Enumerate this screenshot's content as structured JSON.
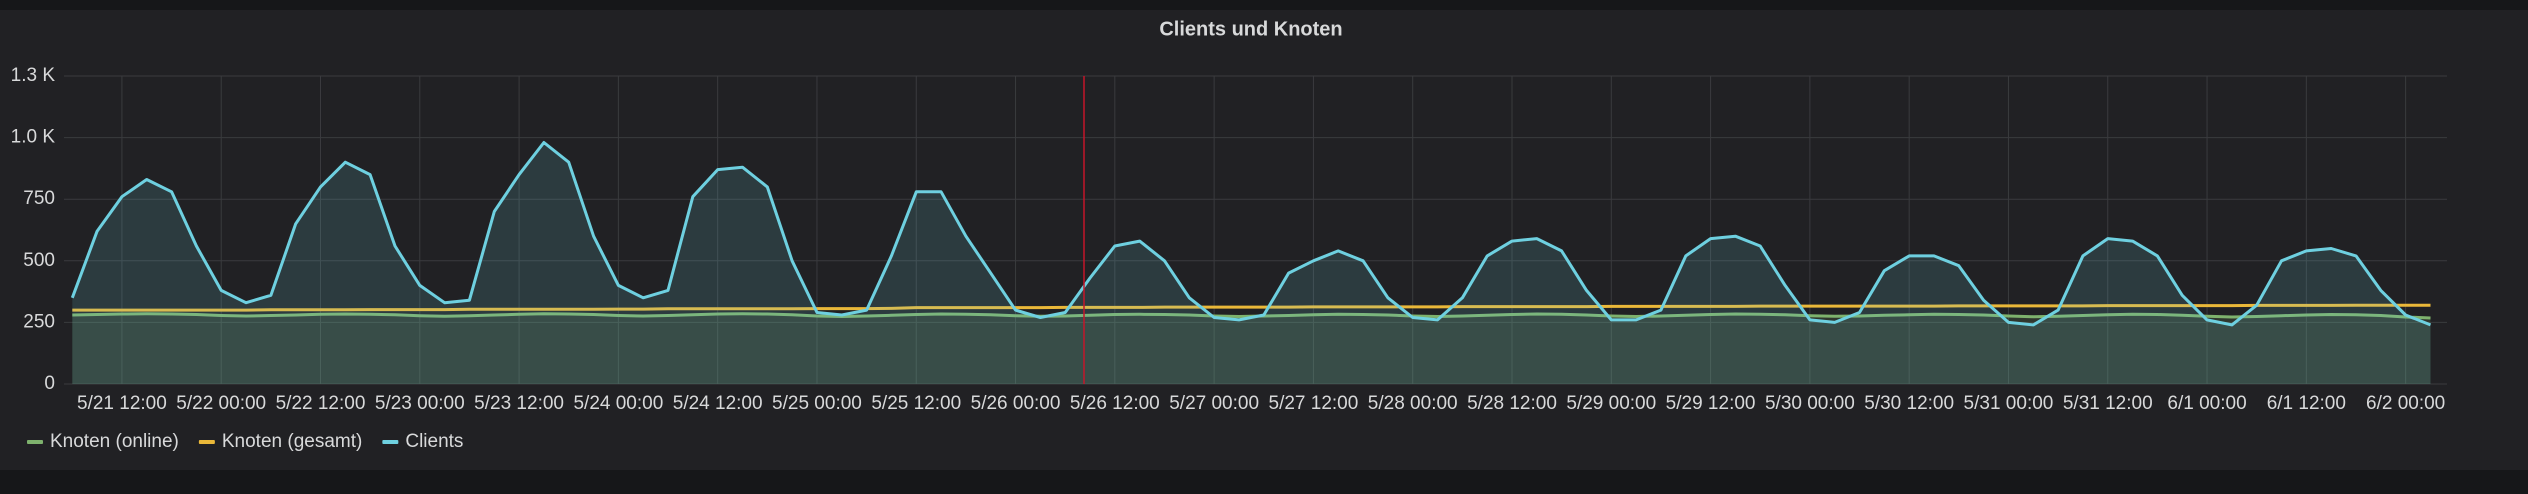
{
  "chart_data": {
    "type": "line",
    "title": "Clients und Knoten",
    "x": [
      "5/21 06:00",
      "5/21 09:00",
      "5/21 12:00",
      "5/21 15:00",
      "5/21 18:00",
      "5/21 21:00",
      "5/22 00:00",
      "5/22 03:00",
      "5/22 06:00",
      "5/22 09:00",
      "5/22 12:00",
      "5/22 15:00",
      "5/22 18:00",
      "5/22 21:00",
      "5/23 00:00",
      "5/23 03:00",
      "5/23 06:00",
      "5/23 09:00",
      "5/23 12:00",
      "5/23 15:00",
      "5/23 18:00",
      "5/23 21:00",
      "5/24 00:00",
      "5/24 03:00",
      "5/24 06:00",
      "5/24 09:00",
      "5/24 12:00",
      "5/24 15:00",
      "5/24 18:00",
      "5/24 21:00",
      "5/25 00:00",
      "5/25 03:00",
      "5/25 06:00",
      "5/25 09:00",
      "5/25 12:00",
      "5/25 15:00",
      "5/25 18:00",
      "5/25 21:00",
      "5/26 00:00",
      "5/26 03:00",
      "5/26 06:00",
      "5/26 09:00",
      "5/26 12:00",
      "5/26 15:00",
      "5/26 18:00",
      "5/26 21:00",
      "5/27 00:00",
      "5/27 03:00",
      "5/27 06:00",
      "5/27 09:00",
      "5/27 12:00",
      "5/27 15:00",
      "5/27 18:00",
      "5/27 21:00",
      "5/28 00:00",
      "5/28 03:00",
      "5/28 06:00",
      "5/28 09:00",
      "5/28 12:00",
      "5/28 15:00",
      "5/28 18:00",
      "5/28 21:00",
      "5/29 00:00",
      "5/29 03:00",
      "5/29 06:00",
      "5/29 09:00",
      "5/29 12:00",
      "5/29 15:00",
      "5/29 18:00",
      "5/29 21:00",
      "5/30 00:00",
      "5/30 03:00",
      "5/30 06:00",
      "5/30 09:00",
      "5/30 12:00",
      "5/30 15:00",
      "5/30 18:00",
      "5/30 21:00",
      "5/31 00:00",
      "5/31 03:00",
      "5/31 06:00",
      "5/31 09:00",
      "5/31 12:00",
      "5/31 15:00",
      "5/31 18:00",
      "5/31 21:00",
      "6/1 00:00",
      "6/1 03:00",
      "6/1 06:00",
      "6/1 09:00",
      "6/1 12:00",
      "6/1 15:00",
      "6/1 18:00",
      "6/1 21:00",
      "6/2 00:00",
      "6/2 03:00"
    ],
    "xlim": [
      "5/21 05:00",
      "6/2 05:00"
    ],
    "xticks": [
      "5/21 12:00",
      "5/22 00:00",
      "5/22 12:00",
      "5/23 00:00",
      "5/23 12:00",
      "5/24 00:00",
      "5/24 12:00",
      "5/25 00:00",
      "5/25 12:00",
      "5/26 00:00",
      "5/26 12:00",
      "5/27 00:00",
      "5/27 12:00",
      "5/28 00:00",
      "5/28 12:00",
      "5/29 00:00",
      "5/29 12:00",
      "5/30 00:00",
      "5/30 12:00",
      "5/31 00:00",
      "5/31 12:00",
      "6/1 00:00",
      "6/1 12:00",
      "6/2 00:00"
    ],
    "ylim": [
      0,
      1250
    ],
    "yticks": [
      0,
      250,
      500,
      750,
      {
        "value": 1000,
        "label": "1.0 K"
      },
      {
        "value": 1250,
        "label": "1.3 K"
      }
    ],
    "grid": true,
    "legend": "bottom-left",
    "series": [
      {
        "name": "Knoten (online)",
        "color": "#7eb26d",
        "fill": true,
        "values": [
          280,
          282,
          284,
          285,
          284,
          282,
          278,
          276,
          278,
          280,
          283,
          284,
          283,
          281,
          277,
          275,
          277,
          280,
          283,
          285,
          284,
          282,
          278,
          276,
          278,
          281,
          284,
          285,
          284,
          281,
          276,
          274,
          276,
          279,
          282,
          284,
          283,
          281,
          277,
          275,
          276,
          279,
          282,
          283,
          282,
          280,
          276,
          274,
          276,
          278,
          281,
          283,
          282,
          280,
          276,
          274,
          276,
          279,
          282,
          284,
          283,
          280,
          276,
          274,
          276,
          279,
          282,
          284,
          283,
          281,
          277,
          275,
          276,
          279,
          281,
          283,
          282,
          280,
          276,
          273,
          275,
          278,
          281,
          283,
          282,
          279,
          275,
          272,
          274,
          277,
          280,
          282,
          281,
          278,
          272,
          268
        ]
      },
      {
        "name": "Knoten (gesamt)",
        "color": "#eab839",
        "fill": false,
        "values": [
          300,
          300,
          300,
          300,
          300,
          300,
          300,
          300,
          301,
          301,
          301,
          301,
          302,
          302,
          302,
          302,
          303,
          303,
          303,
          303,
          303,
          303,
          304,
          304,
          305,
          305,
          305,
          305,
          305,
          305,
          306,
          306,
          306,
          307,
          310,
          310,
          310,
          310,
          310,
          310,
          311,
          311,
          311,
          311,
          312,
          312,
          312,
          312,
          312,
          312,
          313,
          313,
          313,
          313,
          313,
          313,
          314,
          314,
          314,
          314,
          314,
          314,
          315,
          315,
          315,
          315,
          315,
          315,
          316,
          316,
          316,
          316,
          316,
          316,
          316,
          316,
          317,
          317,
          317,
          317,
          317,
          317,
          318,
          318,
          318,
          318,
          318,
          318,
          319,
          319,
          319,
          319,
          320,
          320,
          320,
          320
        ]
      },
      {
        "name": "Clients",
        "color": "#6ed0e0",
        "fill": true,
        "values": [
          350,
          620,
          760,
          830,
          780,
          560,
          380,
          330,
          360,
          650,
          800,
          900,
          850,
          560,
          400,
          330,
          340,
          700,
          850,
          980,
          900,
          600,
          400,
          350,
          380,
          760,
          870,
          880,
          800,
          500,
          290,
          280,
          300,
          520,
          780,
          780,
          600,
          450,
          300,
          270,
          290,
          430,
          560,
          580,
          500,
          350,
          270,
          260,
          280,
          450,
          500,
          540,
          500,
          350,
          270,
          260,
          350,
          520,
          580,
          590,
          540,
          380,
          260,
          260,
          300,
          520,
          590,
          600,
          560,
          400,
          260,
          250,
          290,
          460,
          520,
          520,
          480,
          340,
          250,
          240,
          300,
          520,
          590,
          580,
          520,
          360,
          260,
          240,
          320,
          500,
          540,
          550,
          520,
          380,
          280,
          240
        ]
      }
    ]
  }
}
